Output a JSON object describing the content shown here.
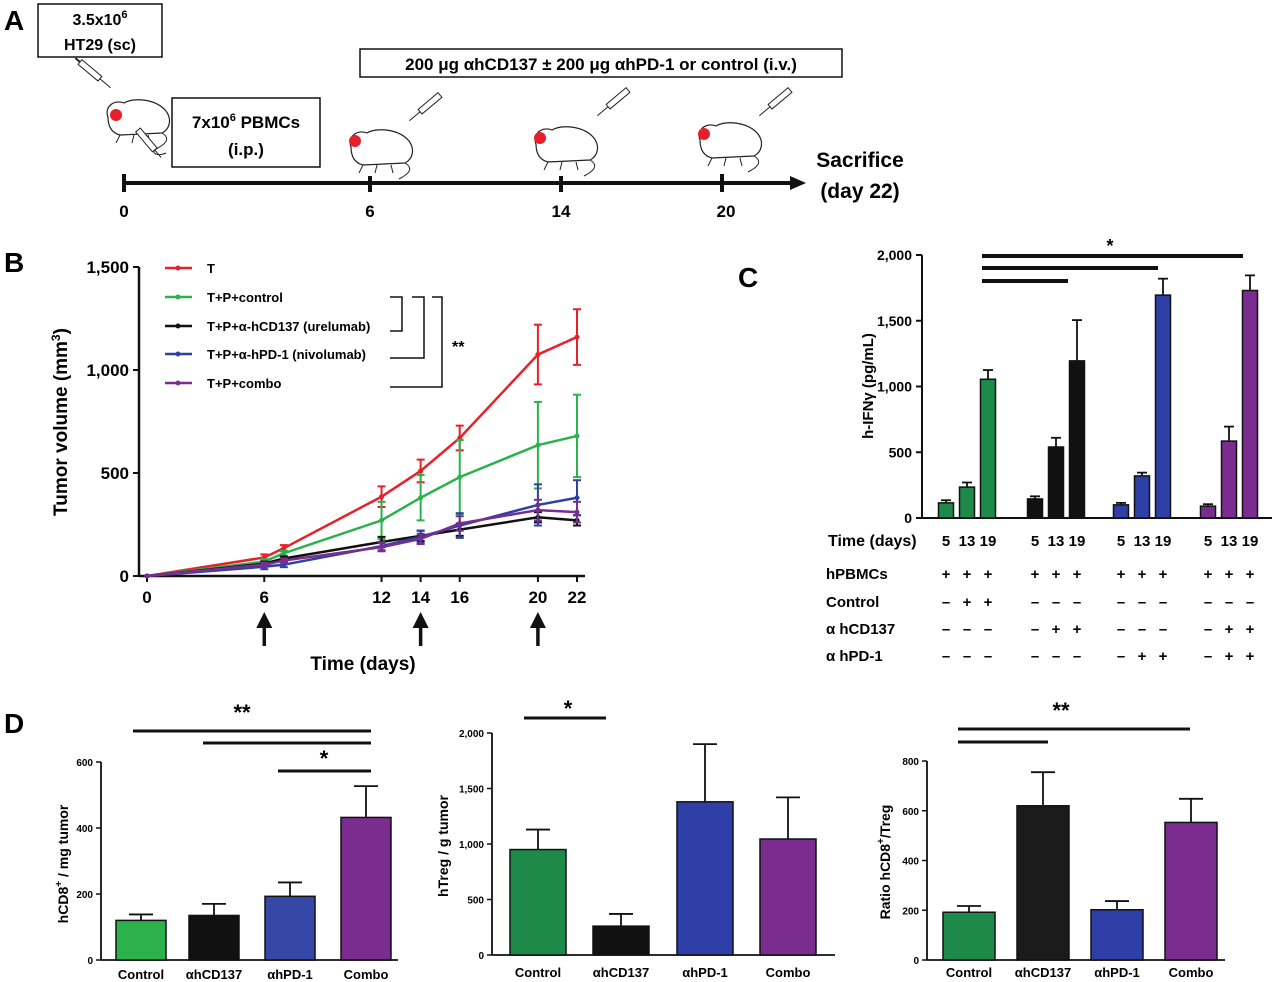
{
  "panel_labels": {
    "a": "A",
    "b": "B",
    "c": "C",
    "d": "D"
  },
  "timeline": {
    "tumor_box": {
      "line1": "3.5x10",
      "line1_sup": "6",
      "line2": "HT29 (sc)"
    },
    "pbmc_box": {
      "line1": "7x10",
      "line1_sup": "6",
      "line1_end": " PBMCs",
      "line2": "(i.p.)"
    },
    "treatment_box": "200 μg αhCD137 ± 200 μg αhPD-1 or control (i.v.)",
    "ticks": [
      "0",
      "6",
      "14",
      "20"
    ],
    "sacrifice_line1": "Sacrifice",
    "sacrifice_line2": "(day 22)",
    "icons": [
      "mouse-icon",
      "syringe-icon",
      "tumor-dot"
    ]
  },
  "chart_data": [
    {
      "id": "B",
      "type": "line",
      "xlabel": "Time (days)",
      "ylabel": "Tumor volume (mm",
      "ylabel_sup": "3",
      "ylabel_end": ")",
      "ylim": [
        0,
        1500
      ],
      "yticks": [
        "0",
        "500",
        "1,000",
        "1,500"
      ],
      "xlim": [
        0,
        22
      ],
      "xticks": [
        "0",
        "6",
        "12",
        "14",
        "16",
        "20",
        "22"
      ],
      "arrows_at_days": [
        6,
        14,
        20
      ],
      "significance": "**",
      "series": [
        {
          "name": "T",
          "color": "#e8202a",
          "points": [
            [
              0,
              0
            ],
            [
              6,
              90
            ],
            [
              7,
              135
            ],
            [
              12,
              385
            ],
            [
              14,
              510
            ],
            [
              16,
              670
            ],
            [
              20,
              1075
            ],
            [
              22,
              1160
            ]
          ],
          "err": [
            0,
            15,
            15,
            50,
            55,
            60,
            145,
            135
          ]
        },
        {
          "name": "T+P+control",
          "color": "#2bb24c",
          "points": [
            [
              0,
              0
            ],
            [
              6,
              70
            ],
            [
              7,
              110
            ],
            [
              12,
              270
            ],
            [
              14,
              380
            ],
            [
              16,
              480
            ],
            [
              20,
              635
            ],
            [
              22,
              680
            ]
          ],
          "err": [
            0,
            12,
            12,
            90,
            110,
            180,
            210,
            200
          ]
        },
        {
          "name": "T+P+α-hCD137 (urelumab)",
          "color": "#111111",
          "points": [
            [
              0,
              0
            ],
            [
              6,
              60
            ],
            [
              7,
              85
            ],
            [
              12,
              165
            ],
            [
              14,
              195
            ],
            [
              16,
              225
            ],
            [
              20,
              285
            ],
            [
              22,
              270
            ]
          ],
          "err": [
            0,
            10,
            10,
            25,
            25,
            30,
            25,
            25
          ]
        },
        {
          "name": "T+P+α-hPD-1 (nivolumab)",
          "color": "#2f3fa8",
          "points": [
            [
              0,
              0
            ],
            [
              6,
              45
            ],
            [
              7,
              55
            ],
            [
              12,
              145
            ],
            [
              14,
              190
            ],
            [
              16,
              245
            ],
            [
              20,
              345
            ],
            [
              22,
              380
            ]
          ],
          "err": [
            0,
            12,
            12,
            20,
            30,
            60,
            100,
            85
          ]
        },
        {
          "name": "T+P+combo",
          "color": "#7b2d8f",
          "points": [
            [
              0,
              0
            ],
            [
              6,
              55
            ],
            [
              7,
              75
            ],
            [
              12,
              140
            ],
            [
              14,
              180
            ],
            [
              16,
              255
            ],
            [
              20,
              320
            ],
            [
              22,
              310
            ]
          ],
          "err": [
            0,
            10,
            10,
            20,
            25,
            35,
            50,
            50
          ]
        }
      ]
    },
    {
      "id": "C",
      "type": "bar",
      "ylabel": "h-IFNγ (pg/mL)",
      "ylim": [
        0,
        2000
      ],
      "yticks": [
        "0",
        "500",
        "1,000",
        "1,500",
        "2,000"
      ],
      "time_label": "Time (days)",
      "time_values": [
        "5",
        "13",
        "19"
      ],
      "significance": "*",
      "groups": [
        {
          "color": "#1e8a4a",
          "values": [
            115,
            235,
            1055
          ],
          "err": [
            20,
            35,
            70
          ]
        },
        {
          "color": "#111111",
          "values": [
            145,
            540,
            1195
          ],
          "err": [
            20,
            70,
            310
          ]
        },
        {
          "color": "#2f3fa8",
          "values": [
            100,
            320,
            1695
          ],
          "err": [
            15,
            25,
            125
          ]
        },
        {
          "color": "#7b2d8f",
          "values": [
            90,
            585,
            1730
          ],
          "err": [
            15,
            110,
            115
          ]
        }
      ],
      "condition_rows": [
        {
          "label": "hPBMCs",
          "marks": [
            [
              "+",
              "+",
              "+"
            ],
            [
              "+",
              "+",
              "+"
            ],
            [
              "+",
              "+",
              "+"
            ],
            [
              "+",
              "+",
              "+"
            ]
          ]
        },
        {
          "label": "Control",
          "marks": [
            [
              "–",
              "+",
              "+"
            ],
            [
              "–",
              "–",
              "–"
            ],
            [
              "–",
              "–",
              "–"
            ],
            [
              "–",
              "–",
              "–"
            ]
          ]
        },
        {
          "label": "α hCD137",
          "marks": [
            [
              "–",
              "–",
              "–"
            ],
            [
              "–",
              "+",
              "+"
            ],
            [
              "–",
              "–",
              "–"
            ],
            [
              "–",
              "+",
              "+"
            ]
          ]
        },
        {
          "label": "α hPD-1",
          "marks": [
            [
              "–",
              "–",
              "–"
            ],
            [
              "–",
              "–",
              "–"
            ],
            [
              "–",
              "+",
              "+"
            ],
            [
              "–",
              "+",
              "+"
            ]
          ]
        }
      ]
    },
    {
      "id": "D1",
      "type": "bar",
      "ylabel": "hCD8",
      "ylabel_sup": "+",
      "ylabel_end": " / mg tumor",
      "ylim": [
        0,
        600
      ],
      "yticks": [
        "0",
        "200",
        "400",
        "600"
      ],
      "categories": [
        "Control",
        "αhCD137",
        "αhPD-1",
        "Combo"
      ],
      "colors": [
        "#2bb24c",
        "#111111",
        "#3548a8",
        "#7b2d8f"
      ],
      "values": [
        120,
        135,
        193,
        432
      ],
      "err": [
        18,
        35,
        42,
        95
      ],
      "sig_labels": [
        "**",
        "*"
      ]
    },
    {
      "id": "D2",
      "type": "bar",
      "ylabel": "hTreg / g tumor",
      "ylim": [
        0,
        2000
      ],
      "yticks": [
        "0",
        "500",
        "1,000",
        "1,500",
        "2,000"
      ],
      "categories": [
        "Control",
        "αhCD137",
        "αhPD-1",
        "Combo"
      ],
      "colors": [
        "#1e8a4a",
        "#111111",
        "#2f3fa8",
        "#7b2d8f"
      ],
      "values": [
        950,
        260,
        1380,
        1045
      ],
      "err": [
        180,
        110,
        520,
        375
      ],
      "sig_labels": [
        "*"
      ]
    },
    {
      "id": "D3",
      "type": "bar",
      "ylabel": "Ratio hCD8",
      "ylabel_sup": "+",
      "ylabel_end": "/Treg",
      "ylim": [
        0,
        800
      ],
      "yticks": [
        "0",
        "200",
        "400",
        "600",
        "800"
      ],
      "categories": [
        "Control",
        "αhCD137",
        "αhPD-1",
        "Combo"
      ],
      "colors": [
        "#1e8a4a",
        "#1b1b1b",
        "#2f3fa8",
        "#7b2d8f"
      ],
      "values": [
        192,
        620,
        202,
        553
      ],
      "err": [
        25,
        135,
        35,
        95
      ],
      "sig_labels": [
        "**"
      ]
    }
  ]
}
